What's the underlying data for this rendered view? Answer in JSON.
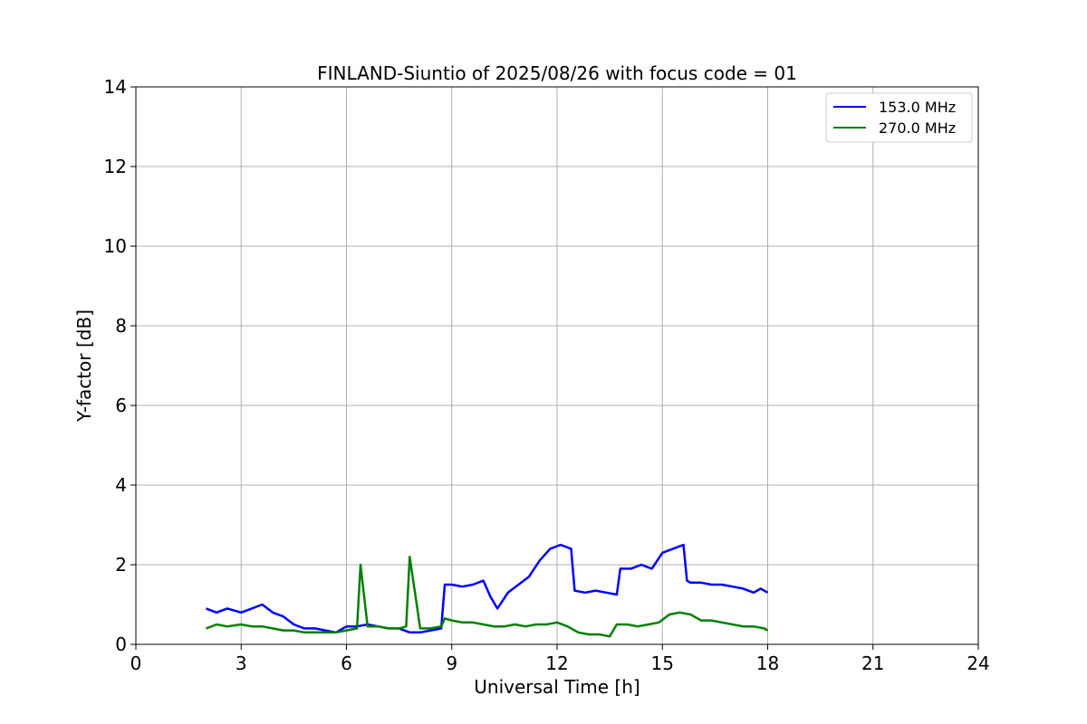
{
  "chart_data": {
    "type": "line",
    "title": "FINLAND-Siuntio of 2025/08/26 with focus code = 01",
    "xlabel": "Universal Time [h]",
    "ylabel": "Y-factor [dB]",
    "xlim": [
      0,
      24
    ],
    "ylim": [
      0,
      14
    ],
    "xticks": [
      0,
      3,
      6,
      9,
      12,
      15,
      18,
      21,
      24
    ],
    "yticks": [
      0,
      2,
      4,
      6,
      8,
      10,
      12,
      14
    ],
    "grid": true,
    "legend_position": "top-right",
    "series": [
      {
        "name": "153.0 MHz",
        "color": "#0000ff",
        "x": [
          2.0,
          2.3,
          2.6,
          3.0,
          3.3,
          3.6,
          3.9,
          4.2,
          4.5,
          4.8,
          5.1,
          5.4,
          5.7,
          6.0,
          6.3,
          6.6,
          6.9,
          7.2,
          7.5,
          7.8,
          8.1,
          8.4,
          8.7,
          8.8,
          9.0,
          9.3,
          9.6,
          9.9,
          10.1,
          10.3,
          10.6,
          10.9,
          11.2,
          11.5,
          11.8,
          12.1,
          12.4,
          12.5,
          12.8,
          13.1,
          13.4,
          13.7,
          13.8,
          14.1,
          14.4,
          14.7,
          15.0,
          15.3,
          15.6,
          15.7,
          15.8,
          16.1,
          16.4,
          16.7,
          17.0,
          17.3,
          17.6,
          17.8,
          18.0
        ],
        "y": [
          0.9,
          0.8,
          0.9,
          0.8,
          0.9,
          1.0,
          0.8,
          0.7,
          0.5,
          0.4,
          0.4,
          0.35,
          0.3,
          0.45,
          0.45,
          0.5,
          0.45,
          0.4,
          0.4,
          0.3,
          0.3,
          0.35,
          0.4,
          1.5,
          1.5,
          1.45,
          1.5,
          1.6,
          1.2,
          0.9,
          1.3,
          1.5,
          1.7,
          2.1,
          2.4,
          2.5,
          2.4,
          1.35,
          1.3,
          1.35,
          1.3,
          1.25,
          1.9,
          1.9,
          2.0,
          1.9,
          2.3,
          2.4,
          2.5,
          1.6,
          1.55,
          1.55,
          1.5,
          1.5,
          1.45,
          1.4,
          1.3,
          1.4,
          1.3
        ]
      },
      {
        "name": "270.0 MHz",
        "color": "#008000",
        "x": [
          2.0,
          2.3,
          2.6,
          3.0,
          3.3,
          3.6,
          3.9,
          4.2,
          4.5,
          4.8,
          5.1,
          5.4,
          5.7,
          6.0,
          6.3,
          6.4,
          6.6,
          6.9,
          7.2,
          7.5,
          7.7,
          7.8,
          8.1,
          8.4,
          8.7,
          8.8,
          9.0,
          9.3,
          9.6,
          9.9,
          10.2,
          10.5,
          10.8,
          11.1,
          11.4,
          11.7,
          12.0,
          12.3,
          12.6,
          12.9,
          13.2,
          13.5,
          13.7,
          14.0,
          14.3,
          14.6,
          14.9,
          15.2,
          15.5,
          15.8,
          16.1,
          16.4,
          16.7,
          17.0,
          17.3,
          17.6,
          17.9,
          18.0
        ],
        "y": [
          0.4,
          0.5,
          0.45,
          0.5,
          0.45,
          0.45,
          0.4,
          0.35,
          0.35,
          0.3,
          0.3,
          0.3,
          0.3,
          0.35,
          0.4,
          2.0,
          0.45,
          0.45,
          0.4,
          0.4,
          0.45,
          2.2,
          0.4,
          0.4,
          0.45,
          0.65,
          0.6,
          0.55,
          0.55,
          0.5,
          0.45,
          0.45,
          0.5,
          0.45,
          0.5,
          0.5,
          0.55,
          0.45,
          0.3,
          0.25,
          0.25,
          0.2,
          0.5,
          0.5,
          0.45,
          0.5,
          0.55,
          0.75,
          0.8,
          0.75,
          0.6,
          0.6,
          0.55,
          0.5,
          0.45,
          0.45,
          0.4,
          0.35
        ]
      }
    ]
  }
}
